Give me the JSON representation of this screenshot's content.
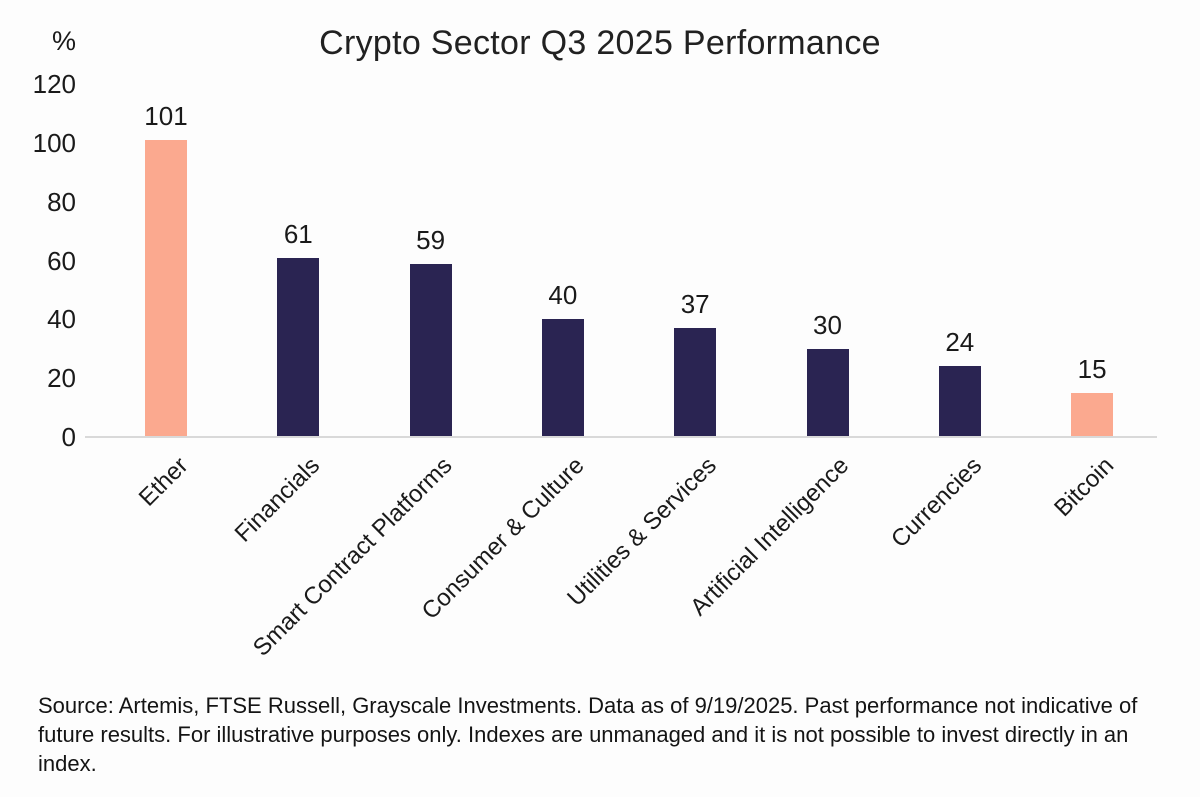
{
  "chart_data": {
    "type": "bar",
    "title": "Crypto Sector Q3 2025 Performance",
    "unit_label": "%",
    "categories": [
      "Ether",
      "Financials",
      "Smart Contract Platforms",
      "Consumer & Culture",
      "Utilities & Services",
      "Artificial Intelligence",
      "Currencies",
      "Bitcoin"
    ],
    "values": [
      101,
      61,
      59,
      40,
      37,
      30,
      24,
      15
    ],
    "bar_colors": [
      "#FBA98F",
      "#2A2452",
      "#2A2452",
      "#2A2452",
      "#2A2452",
      "#2A2452",
      "#2A2452",
      "#FBA98F"
    ],
    "yticks": [
      0,
      20,
      40,
      60,
      80,
      100,
      120
    ],
    "ylim": [
      0,
      120
    ],
    "xlabel": "",
    "ylabel": "%",
    "grid": false,
    "legend_position": "none",
    "colors": {
      "highlight_bar": "#FBA98F",
      "default_bar": "#2A2452",
      "axis_line": "#D9D9D9",
      "text": "#1A1A1A"
    }
  },
  "footer": {
    "lines": [
      "Source: Artemis, FTSE Russell, Grayscale Investments. Data as of 9/19/2025. Past performance not",
      "indicative of future results. For illustrative purposes only. Indexes are unmanaged and it is not possible",
      "to invest directly in an index."
    ]
  }
}
